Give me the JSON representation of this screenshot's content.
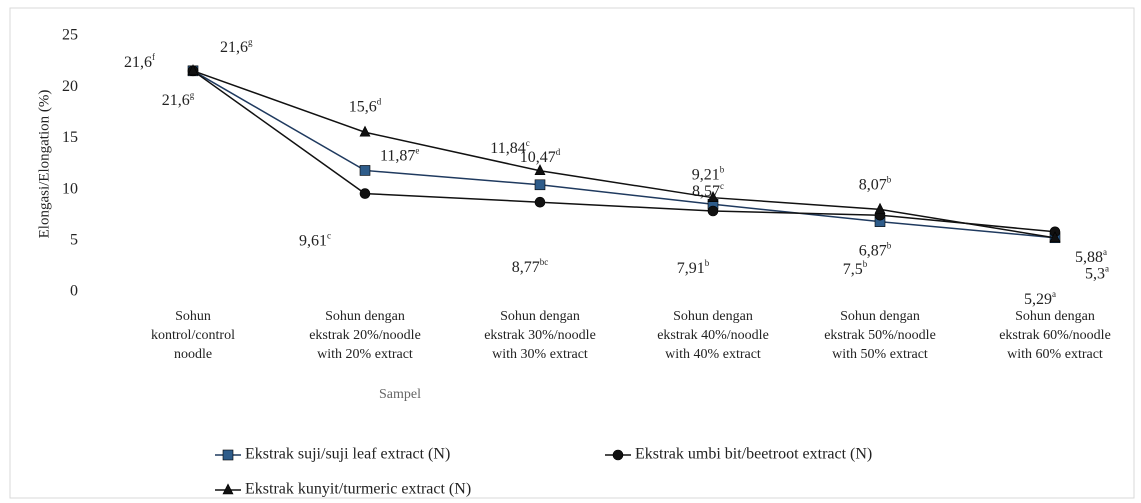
{
  "chart_data": {
    "type": "line",
    "x_label": "Sampel",
    "y_label": "Elongasi/Elongation (%)",
    "categories": [
      [
        "Sohun",
        "kontrol/control",
        "noodle"
      ],
      [
        "Sohun dengan",
        "ekstrak 20%/noodle",
        "with 20% extract"
      ],
      [
        "Sohun dengan",
        "ekstrak 30%/noodle",
        "with 30% extract"
      ],
      [
        "Sohun dengan",
        "ekstrak 40%/noodle",
        "with 40% extract"
      ],
      [
        "Sohun dengan",
        "ekstrak 50%/noodle",
        "with 50% extract"
      ],
      [
        "Sohun dengan",
        "ekstrak 60%/noodle",
        "with 60% extract"
      ]
    ],
    "series": [
      {
        "name": "Ekstrak suji/suji leaf extract  (N)",
        "color": "#1f3a5f",
        "marker": "square",
        "values": [
          21.6,
          11.87,
          10.47,
          8.57,
          6.87,
          5.3
        ],
        "value_labels": [
          "21,6",
          "11,87",
          "10,47",
          "8,57",
          "6,87",
          "5,3"
        ],
        "value_letters": [
          "g",
          "e",
          "d",
          "c",
          "b",
          "a"
        ]
      },
      {
        "name": "Ekstrak umbi bit/beetroot extract (N)",
        "color": "#111111",
        "marker": "circle",
        "values": [
          21.6,
          9.61,
          8.77,
          7.91,
          7.5,
          5.88
        ],
        "value_labels": [
          "21,6",
          "9,61",
          "8,77",
          "7,91",
          "7,5",
          "5,88"
        ],
        "value_letters": [
          "g",
          "c",
          "bc",
          "b",
          "b",
          "a"
        ]
      },
      {
        "name": "Ekstrak kunyit/turmeric extract (N)",
        "color": "#111111",
        "marker": "triangle",
        "values": [
          21.6,
          15.6,
          11.84,
          9.21,
          8.07,
          5.29
        ],
        "value_labels": [
          "21,6",
          "15,6",
          "11,84",
          "9,21",
          "8,07",
          "5,29"
        ],
        "value_letters": [
          "f",
          "d",
          "c",
          "b",
          "b",
          "a"
        ]
      }
    ],
    "ylim": [
      0,
      25
    ],
    "yticks": [
      0,
      5,
      10,
      15,
      20,
      25
    ],
    "grid": false,
    "legend": "bottom"
  }
}
